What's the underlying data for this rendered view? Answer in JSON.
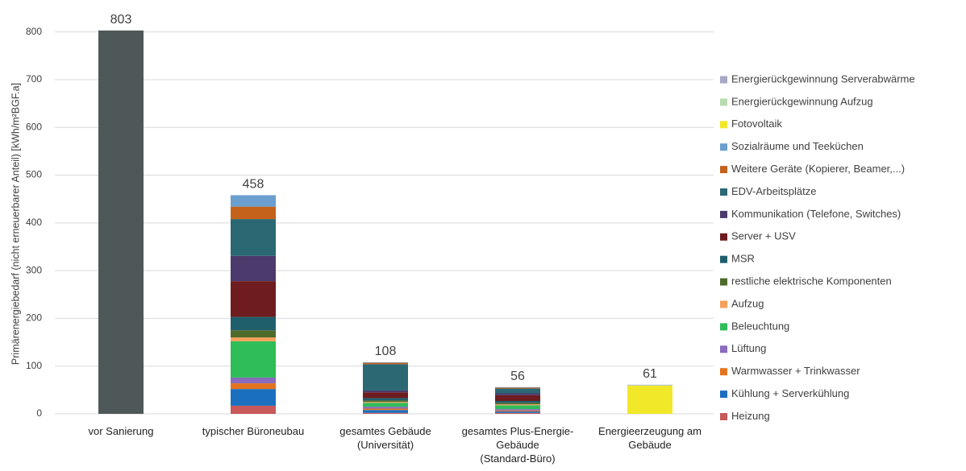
{
  "chart_data": {
    "type": "stacked_bar",
    "y_label": "Primärenergiebedarf (nicht erneuerbarer Anteil) [kWh/m²BGF.a]",
    "categories": [
      "vor Sanierung",
      "typischer Büroneubau",
      "gesamtes Gebäude\n(Universität)",
      "gesamtes Plus-Energie-\nGebäude\n(Standard-Büro)",
      "Energieerzeugung am\nGebäude"
    ],
    "totals": [
      803,
      458,
      108,
      56,
      61
    ],
    "ylim": [
      0,
      850
    ],
    "yticks": [
      0,
      100,
      200,
      300,
      400,
      500,
      600,
      700,
      800
    ],
    "grid": true,
    "legend": "right",
    "series": [
      {
        "color": "#4f5858",
        "values": [
          803,
          null,
          null,
          null,
          null
        ]
      },
      {
        "name": "Heizung",
        "color": "#c8585a",
        "values": [
          null,
          17,
          2,
          2,
          null
        ]
      },
      {
        "name": "Kühlung + Serverkühlung",
        "color": "#1b6fbf",
        "values": [
          null,
          35,
          6,
          3,
          null
        ]
      },
      {
        "name": "Warmwasser + Trinkwasser",
        "color": "#e3741f",
        "values": [
          null,
          12,
          3,
          2,
          null
        ]
      },
      {
        "name": "Lüftung",
        "color": "#8a6bbd",
        "values": [
          null,
          12,
          4,
          3,
          null
        ]
      },
      {
        "name": "Beleuchtung",
        "color": "#2ebd59",
        "values": [
          null,
          76,
          8,
          8,
          null
        ]
      },
      {
        "name": "Aufzug",
        "color": "#f6a05a",
        "values": [
          null,
          8,
          2,
          2,
          null
        ]
      },
      {
        "name": "restliche elektrische Komponenten",
        "color": "#4e6b2a",
        "values": [
          null,
          15,
          3,
          3,
          null
        ]
      },
      {
        "name": "MSR",
        "color": "#1f5f6c",
        "values": [
          null,
          28,
          5,
          4,
          null
        ]
      },
      {
        "name": "Server + USV",
        "color": "#6e1c1f",
        "values": [
          null,
          75,
          12,
          12,
          null
        ]
      },
      {
        "name": "Kommunikation (Telefone, Switches)",
        "color": "#4b3a6b",
        "values": [
          null,
          53,
          4,
          4,
          null
        ]
      },
      {
        "name": "EDV-Arbeitsplätze",
        "color": "#2a6874",
        "values": [
          null,
          77,
          55,
          10,
          null
        ]
      },
      {
        "name": "Weitere Geräte (Kopierer, Beamer,...)",
        "color": "#c4621c",
        "values": [
          null,
          26,
          3,
          2,
          null
        ]
      },
      {
        "name": "Sozialräume und Teeküchen",
        "color": "#6a9fcf",
        "values": [
          null,
          24,
          1,
          1,
          null
        ]
      },
      {
        "name": "Fotovoltaik",
        "color": "#f2e82a",
        "values": [
          null,
          null,
          null,
          null,
          59
        ]
      },
      {
        "name": "Energierückgewinnung Aufzug",
        "color": "#b8dcb0",
        "values": [
          null,
          null,
          null,
          null,
          1
        ]
      },
      {
        "name": "Energierückgewinnung Serverabwärme",
        "color": "#a8a8c4",
        "values": [
          null,
          null,
          null,
          null,
          1
        ]
      }
    ]
  }
}
